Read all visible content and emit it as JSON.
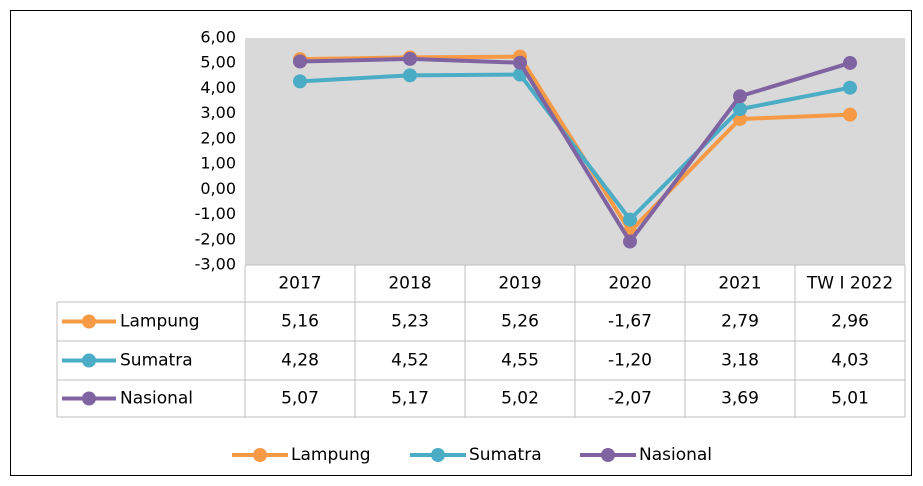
{
  "chart_data": {
    "type": "line",
    "categories": [
      "2017",
      "2018",
      "2019",
      "2020",
      "2021",
      "TW I 2022"
    ],
    "series": [
      {
        "name": "Lampung",
        "color": "#f79a46",
        "values": [
          5.16,
          5.23,
          5.26,
          -1.67,
          2.79,
          2.96
        ],
        "value_labels": [
          "5,16",
          "5,23",
          "5,26",
          "-1,67",
          "2,79",
          "2,96"
        ]
      },
      {
        "name": "Sumatra",
        "color": "#4bacc6",
        "values": [
          4.28,
          4.52,
          4.55,
          -1.2,
          3.18,
          4.03
        ],
        "value_labels": [
          "4,28",
          "4,52",
          "4,55",
          "-1,20",
          "3,18",
          "4,03"
        ]
      },
      {
        "name": "Nasional",
        "color": "#8064a2",
        "values": [
          5.07,
          5.17,
          5.02,
          -2.07,
          3.69,
          5.01
        ],
        "value_labels": [
          "5,07",
          "5,17",
          "5,02",
          "-2,07",
          "3,69",
          "5,01"
        ]
      }
    ],
    "ylim": [
      -3,
      6
    ],
    "yticks": [
      {
        "value": -3,
        "label": "-3,00"
      },
      {
        "value": -2,
        "label": "-2,00"
      },
      {
        "value": -1,
        "label": "-1,00"
      },
      {
        "value": 0,
        "label": "0,00"
      },
      {
        "value": 1,
        "label": "1,00"
      },
      {
        "value": 2,
        "label": "2,00"
      },
      {
        "value": 3,
        "label": "3,00"
      },
      {
        "value": 4,
        "label": "4,00"
      },
      {
        "value": 5,
        "label": "5,00"
      },
      {
        "value": 6,
        "label": "6,00"
      }
    ],
    "legend": "bottom"
  }
}
